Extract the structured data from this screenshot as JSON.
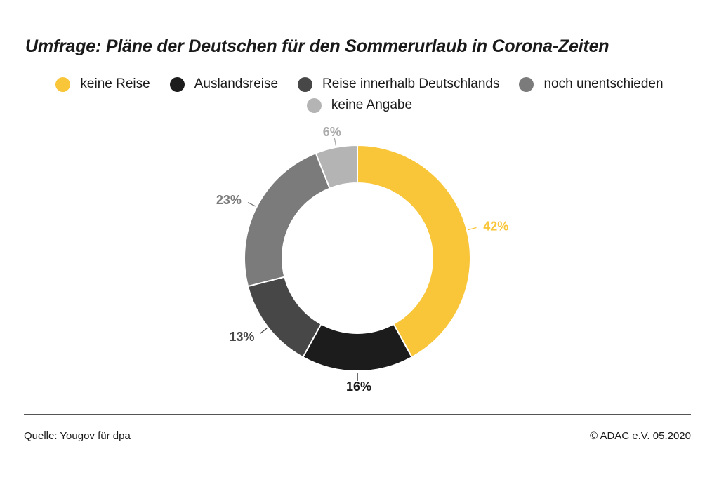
{
  "chart_data": {
    "type": "pie",
    "title": "Umfrage: Pläne der Deutschen für den Sommerurlaub in Corona-Zeiten",
    "legend_position": "top",
    "slices": [
      {
        "label": "keine Reise",
        "value": 42,
        "value_label": "42%",
        "color": "#F9C63A",
        "label_color": "#F9C63A"
      },
      {
        "label": "Auslandsreise",
        "value": 16,
        "value_label": "16%",
        "color": "#1C1C1C",
        "label_color": "#1C1C1C"
      },
      {
        "label": "Reise innerhalb Deutschlands",
        "value": 13,
        "value_label": "13%",
        "color": "#474747",
        "label_color": "#474747"
      },
      {
        "label": "noch unentschieden",
        "value": 23,
        "value_label": "23%",
        "color": "#7B7B7B",
        "label_color": "#7B7B7B"
      },
      {
        "label": "keine Angabe",
        "value": 6,
        "value_label": "6%",
        "color": "#B4B4B4",
        "label_color": "#AAAAAA"
      }
    ]
  },
  "footer": {
    "source": "Quelle: Yougov für dpa",
    "copyright": "© ADAC e.V. 05.2020"
  }
}
